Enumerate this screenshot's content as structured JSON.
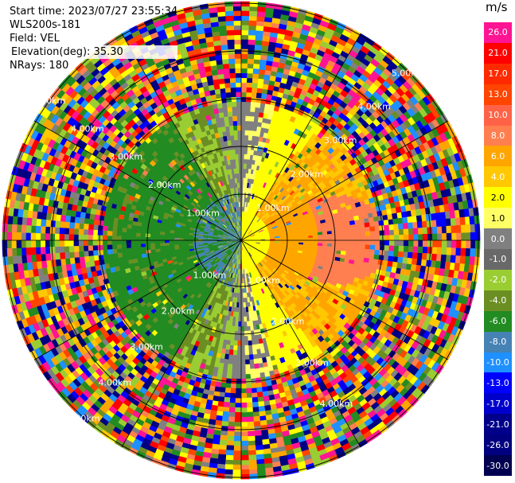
{
  "header": {
    "start_time": "Start time: 2023/07/27 23:55:34",
    "instrument": "WLS200s-181",
    "field": "Field: VEL",
    "elevation": "Elevation(deg): 35.30",
    "nrays": "NRays: 180"
  },
  "range_rings": [
    "1.00km",
    "2.00km",
    "3.00km",
    "4.00km",
    "5.00km"
  ],
  "colorbar": {
    "unit": "m/s",
    "ticks": [
      "26.0",
      "21.0",
      "17.0",
      "13.0",
      "10.0",
      "8.0",
      "6.0",
      "4.0",
      "2.0",
      "1.0",
      "0.0",
      "-1.0",
      "-2.0",
      "-4.0",
      "-6.0",
      "-8.0",
      "-10.0",
      "-13.0",
      "-17.0",
      "-21.0",
      "-26.0",
      "-30.0"
    ],
    "colors": [
      "#ff1493",
      "#ff0000",
      "#ff2a00",
      "#ff4500",
      "#ff6347",
      "#ff7f50",
      "#ffa500",
      "#ffc800",
      "#ffff00",
      "#ffff66",
      "#808080",
      "#696969",
      "#9acd32",
      "#6b8e23",
      "#228b22",
      "#4682b4",
      "#1e90ff",
      "#0000ff",
      "#0000cd",
      "#00008b",
      "#000080",
      "#000050"
    ]
  }
}
